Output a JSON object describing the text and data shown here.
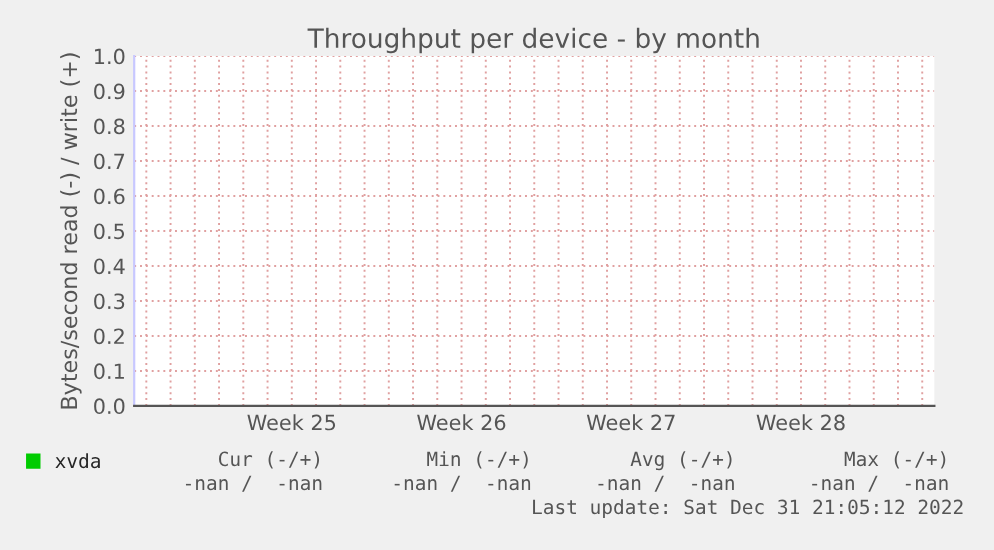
{
  "chart_data": {
    "type": "line",
    "title": "Throughput per device - by month",
    "ylabel": "Bytes/second read (-) / write (+)",
    "categories": [
      null,
      null,
      null,
      null,
      null,
      null,
      "Week 25",
      null,
      null,
      null,
      null,
      null,
      null,
      "Week 26",
      null,
      null,
      null,
      null,
      null,
      null,
      "Week 27",
      null,
      null,
      null,
      null,
      null,
      null,
      "Week 28",
      null,
      null,
      null,
      null,
      null
    ],
    "series": [
      {
        "name": "xvda",
        "color": "#00cc00",
        "values": [
          null,
          null,
          null,
          null,
          null,
          null,
          null,
          null,
          null,
          null,
          null,
          null,
          null,
          null,
          null,
          null,
          null,
          null,
          null,
          null,
          null,
          null,
          null,
          null,
          null,
          null,
          null,
          null,
          null,
          null,
          null,
          null,
          null
        ]
      }
    ],
    "ylim": [
      0,
      1
    ],
    "yticks": [
      {
        "value": 0,
        "label": "0.0"
      },
      {
        "value": 0.1,
        "label": "0.1"
      },
      {
        "value": 0.2,
        "label": "0.2"
      },
      {
        "value": 0.3,
        "label": "0.3"
      },
      {
        "value": 0.4,
        "label": "0.4"
      },
      {
        "value": 0.5,
        "label": "0.5"
      },
      {
        "value": 0.6,
        "label": "0.6"
      },
      {
        "value": 0.7,
        "label": "0.7"
      },
      {
        "value": 0.8,
        "label": "0.8"
      },
      {
        "value": 0.9,
        "label": "0.9"
      },
      {
        "value": 1.0,
        "label": "1.0"
      }
    ],
    "grid": true,
    "legend": "bottom left",
    "annotations": [
      "Cur (-/+)",
      "Min (-/+)",
      "Avg (-/+)",
      "Max (-/+)",
      "-nan /  -nan",
      "-nan /  -nan",
      "-nan /  -nan",
      "-nan /  -nan",
      "Last update: Sat Dec 31 21:05:12 2022"
    ]
  }
}
